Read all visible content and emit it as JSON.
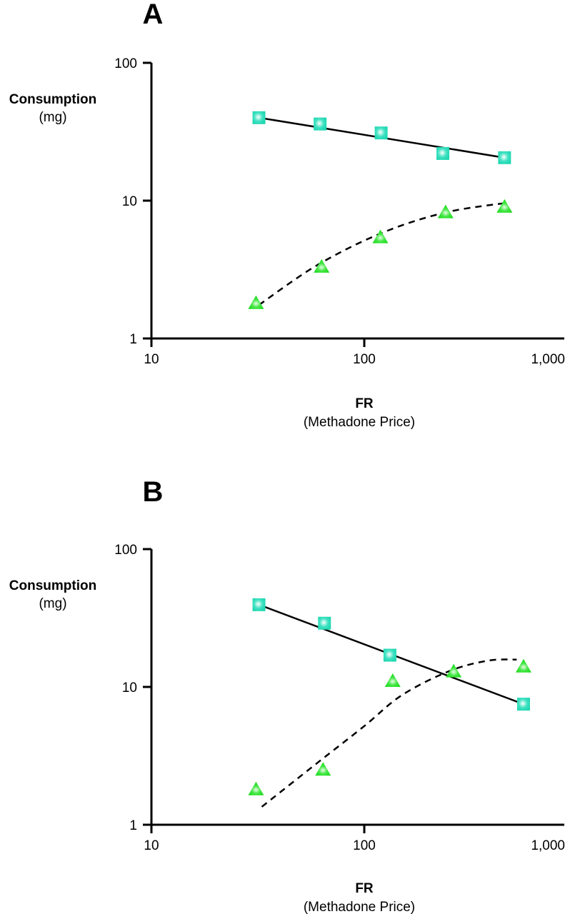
{
  "chart_data": [
    {
      "type": "scatter",
      "panel_label": "A",
      "xlabel": "FR",
      "xlabel_sub": "(Methadone Price)",
      "ylabel": "Consumption",
      "ylabel_sub": "(mg)",
      "x_scale": "log",
      "y_scale": "log",
      "xlim": [
        10,
        1000
      ],
      "ylim": [
        1,
        100
      ],
      "x_ticks": [
        10,
        100,
        1000
      ],
      "x_tick_labels": [
        "10",
        "100",
        "1,000"
      ],
      "y_ticks": [
        1,
        10,
        100
      ],
      "y_tick_labels": [
        "1",
        "10",
        "100"
      ],
      "grid": false,
      "legend": "none",
      "series": [
        {
          "name": "squares",
          "marker": "square",
          "color": "#1fd6b0",
          "fit_line": "solid",
          "x": [
            32,
            62,
            120,
            234,
            456
          ],
          "y": [
            40,
            36,
            31,
            22,
            20.5
          ],
          "fit": {
            "x": [
              32,
              456
            ],
            "y": [
              40,
              20.5
            ]
          }
        },
        {
          "name": "triangles",
          "marker": "triangle",
          "color": "#22dd22",
          "fit_line": "dashed",
          "x": [
            31,
            63,
            119,
            241,
            456
          ],
          "y": [
            1.8,
            3.3,
            5.4,
            8.2,
            9.0
          ],
          "fit": {
            "x": [
              32,
              60,
              120,
              240,
              480
            ],
            "y": [
              1.75,
              3.4,
              5.8,
              8.2,
              9.7
            ]
          }
        }
      ]
    },
    {
      "type": "scatter",
      "panel_label": "B",
      "xlabel": "FR",
      "xlabel_sub": "(Methadone Price)",
      "ylabel": "Consumption",
      "ylabel_sub": "(mg)",
      "x_scale": "log",
      "y_scale": "log",
      "xlim": [
        10,
        1000
      ],
      "ylim": [
        1,
        100
      ],
      "x_ticks": [
        10,
        100,
        1000
      ],
      "x_tick_labels": [
        "10",
        "100",
        "1,000"
      ],
      "y_ticks": [
        1,
        10,
        100
      ],
      "y_tick_labels": [
        "1",
        "10",
        "100"
      ],
      "grid": false,
      "legend": "none",
      "series": [
        {
          "name": "squares",
          "marker": "square",
          "color": "#1fd6b0",
          "fit_line": "solid",
          "x": [
            32,
            65,
            132,
            560
          ],
          "y": [
            39.5,
            29,
            17,
            7.5
          ],
          "fit": {
            "x": [
              32,
              560
            ],
            "y": [
              39.5,
              7.5
            ]
          }
        },
        {
          "name": "triangles",
          "marker": "triangle",
          "color": "#22dd22",
          "fit_line": "dashed",
          "x": [
            31,
            64,
            136,
            263,
            560
          ],
          "y": [
            1.8,
            2.5,
            11,
            12.9,
            14
          ],
          "fit": {
            "x": [
              33,
              60,
              100,
              150,
              250,
              380,
              520
            ],
            "y": [
              1.35,
              2.8,
              5.2,
              8.7,
              13.0,
              15.5,
              15.8
            ]
          }
        }
      ]
    }
  ]
}
